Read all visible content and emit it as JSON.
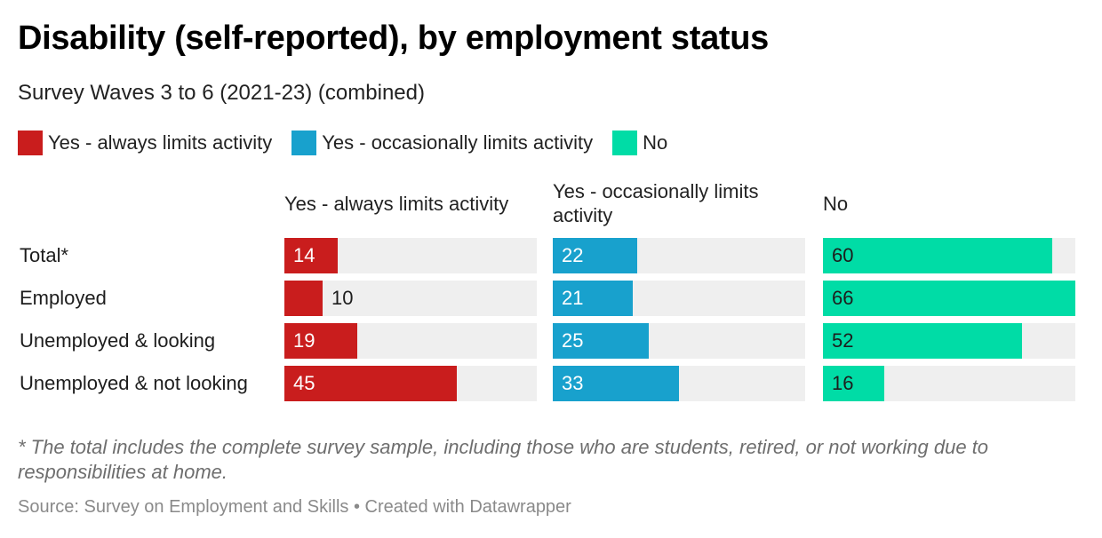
{
  "title": "Disability (self-reported), by employment status",
  "subtitle": "Survey Waves 3 to 6 (2021-23) (combined)",
  "legend": [
    {
      "label": "Yes - always limits activity",
      "color": "#c91d1d"
    },
    {
      "label": "Yes - occasionally limits activity",
      "color": "#18a1cd"
    },
    {
      "label": "No",
      "color": "#00dca6"
    }
  ],
  "footnote": "* The total includes the complete survey sample, including those who are students, retired, or not working due to responsibilities at home.",
  "source": "Source: Survey on Employment and Skills • Created with Datawrapper",
  "chart_data": {
    "type": "bar",
    "categories": [
      "Total*",
      "Employed",
      "Unemployed & looking",
      "Unemployed & not looking"
    ],
    "series": [
      {
        "name": "Yes - always limits activity",
        "values": [
          14,
          10,
          19,
          45
        ],
        "color": "#c91d1d"
      },
      {
        "name": "Yes - occasionally limits activity",
        "values": [
          22,
          21,
          25,
          33
        ],
        "color": "#18a1cd"
      },
      {
        "name": "No",
        "values": [
          60,
          66,
          52,
          16
        ],
        "color": "#00dca6"
      }
    ],
    "xlim": [
      0,
      66
    ],
    "grid": false,
    "legend_position": "top-left"
  }
}
